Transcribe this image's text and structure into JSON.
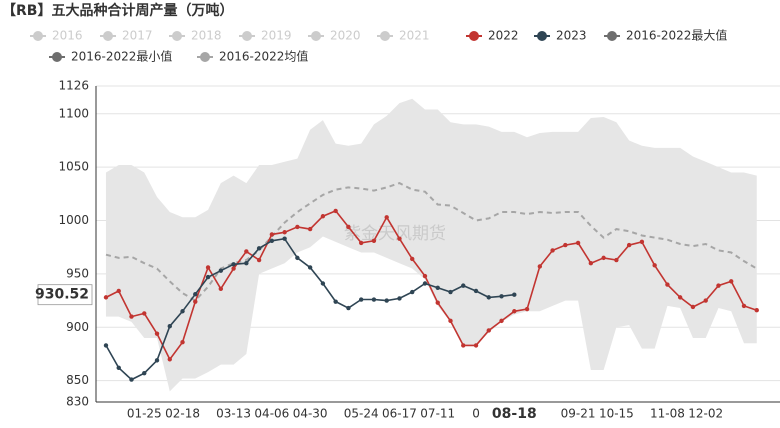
{
  "chart_data": {
    "type": "line",
    "title": "【RB】五大品种合计周产量（万吨）",
    "watermark": "紫金天风期货",
    "categories": [
      null,
      null,
      null,
      "01-25",
      null,
      null,
      "02-18",
      null,
      null,
      null,
      "03-13",
      null,
      null,
      "04-06",
      null,
      null,
      "04-30",
      null,
      null,
      null,
      "05-24",
      null,
      null,
      "06-17",
      null,
      null,
      "07-11",
      null,
      null,
      "0",
      null,
      null,
      "08-18",
      null,
      null,
      null,
      null,
      "09-21",
      null,
      null,
      "10-15",
      null,
      null,
      null,
      "11-08",
      null,
      null,
      "12-02",
      null,
      null,
      null,
      null,
      null
    ],
    "ylim": [
      830,
      1126
    ],
    "yticks": [
      830,
      850,
      900,
      950,
      1000,
      1050,
      1100,
      1126
    ],
    "grid": true,
    "band_color": "#e6e6e6",
    "pointer": {
      "x": "08-18",
      "y": 930.52
    },
    "hidden_series": [
      {
        "name": "2016",
        "color": "#cccccc"
      },
      {
        "name": "2017",
        "color": "#cccccc"
      },
      {
        "name": "2018",
        "color": "#cccccc"
      },
      {
        "name": "2019",
        "color": "#cccccc"
      },
      {
        "name": "2020",
        "color": "#cccccc"
      },
      {
        "name": "2021",
        "color": "#cccccc"
      }
    ],
    "series": [
      {
        "name": "2022",
        "color": "#c23531",
        "style": "solid",
        "values": [
          928,
          934,
          910,
          913,
          894,
          870,
          886,
          924,
          956,
          936,
          955,
          971,
          963,
          987,
          989,
          994,
          992,
          1004,
          1009,
          994,
          979,
          981,
          1003,
          983,
          964,
          948,
          923,
          906,
          883,
          883,
          897,
          906,
          915,
          917,
          957,
          972,
          977,
          979,
          960,
          965,
          963,
          977,
          980,
          958,
          940,
          928,
          919,
          925,
          939,
          943,
          920,
          916,
          null
        ]
      },
      {
        "name": "2023",
        "color": "#2f4554",
        "style": "solid",
        "values": [
          883,
          862,
          851,
          857,
          869,
          901,
          915,
          931,
          947,
          953,
          959,
          960,
          974,
          981,
          983,
          965,
          956,
          941,
          924,
          918,
          926,
          926,
          925,
          927,
          933,
          941,
          937,
          933,
          939,
          934,
          928,
          929,
          930.52,
          null,
          null,
          null,
          null,
          null,
          null,
          null,
          null,
          null,
          null,
          null,
          null,
          null,
          null,
          null,
          null,
          null,
          null,
          null,
          null
        ]
      },
      {
        "name": "2016-2022最大值",
        "color": "#6e6e6e",
        "style": "band",
        "values": [
          1045,
          1052,
          1052,
          1045,
          1022,
          1008,
          1003,
          1003,
          1010,
          1035,
          1042,
          1035,
          1052,
          1052,
          1055,
          1058,
          1085,
          1094,
          1072,
          1070,
          1072,
          1090,
          1098,
          1110,
          1114,
          1104,
          1104,
          1092,
          1090,
          1090,
          1088,
          1083,
          1083,
          1078,
          1082,
          1083,
          1083,
          1083,
          1096,
          1097,
          1092,
          1075,
          1070,
          1068,
          1068,
          1068,
          1060,
          1055,
          1050,
          1045,
          1045,
          1042,
          null
        ]
      },
      {
        "name": "2016-2022最小值",
        "color": "#6e6e6e",
        "style": "band",
        "values": [
          910,
          910,
          905,
          890,
          890,
          840,
          852,
          852,
          858,
          865,
          865,
          875,
          950,
          955,
          960,
          970,
          975,
          985,
          980,
          975,
          970,
          970,
          965,
          960,
          955,
          945,
          920,
          905,
          883,
          883,
          895,
          905,
          912,
          915,
          915,
          920,
          925,
          925,
          860,
          860,
          900,
          902,
          880,
          880,
          920,
          918,
          890,
          890,
          918,
          915,
          885,
          885,
          null
        ]
      },
      {
        "name": "2016-2022均值",
        "color": "#a6a6a6",
        "style": "dashed",
        "values": [
          968,
          965,
          966,
          960,
          955,
          943,
          932,
          925,
          938,
          955,
          960,
          963,
          972,
          985,
          998,
          1008,
          1016,
          1024,
          1029,
          1031,
          1030,
          1028,
          1031,
          1035,
          1029,
          1027,
          1015,
          1014,
          1007,
          1000,
          1002,
          1008,
          1008,
          1006,
          1008,
          1007,
          1008,
          1008,
          995,
          984,
          992,
          990,
          986,
          984,
          982,
          978,
          976,
          978,
          972,
          970,
          962,
          955,
          null
        ]
      }
    ]
  }
}
